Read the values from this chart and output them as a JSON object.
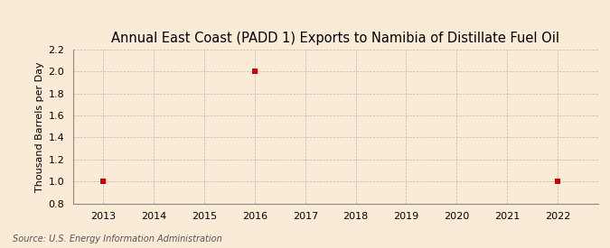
{
  "title": "Annual East Coast (PADD 1) Exports to Namibia of Distillate Fuel Oil",
  "ylabel": "Thousand Barrels per Day",
  "source_text": "Source: U.S. Energy Information Administration",
  "background_color": "#faebd7",
  "plot_bg_color": "#faebd7",
  "x_data": [
    2013,
    2016,
    2022
  ],
  "y_data": [
    1.0,
    2.0,
    1.0
  ],
  "point_color": "#cc0000",
  "xlim": [
    2012.4,
    2022.8
  ],
  "ylim": [
    0.8,
    2.2
  ],
  "xticks": [
    2013,
    2014,
    2015,
    2016,
    2017,
    2018,
    2019,
    2020,
    2021,
    2022
  ],
  "yticks": [
    0.8,
    1.0,
    1.2,
    1.4,
    1.6,
    1.8,
    2.0,
    2.2
  ],
  "grid_color": "#aaaaaa",
  "title_fontsize": 10.5,
  "axis_label_fontsize": 8,
  "tick_fontsize": 8,
  "source_fontsize": 7,
  "marker_size": 4
}
